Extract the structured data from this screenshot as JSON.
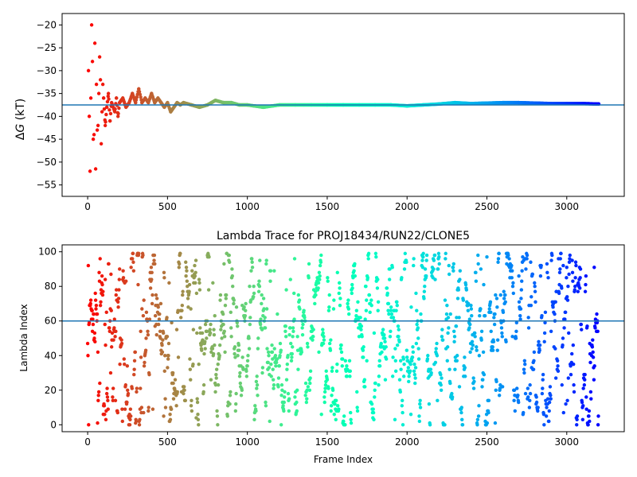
{
  "chart_data": [
    {
      "type": "scatter",
      "title": "",
      "xlabel": "",
      "ylabel": "ΔG (kT)",
      "ylabel_italic_part": "G",
      "xlim": [
        -160,
        3360
      ],
      "ylim": [
        -57.5,
        -17.5
      ],
      "xticks": [
        0,
        500,
        1000,
        1500,
        2000,
        2500,
        3000
      ],
      "xtick_labels": [
        "0",
        "500",
        "1000",
        "1500",
        "2000",
        "2500",
        "3000"
      ],
      "yticks": [
        -20,
        -25,
        -30,
        -35,
        -40,
        -45,
        -50,
        -55
      ],
      "ytick_labels": [
        "−20",
        "−25",
        "−30",
        "−35",
        "−40",
        "−45",
        "−50",
        "−55"
      ],
      "hline": -37.5,
      "hline_color": "#1f77b4",
      "colormap": "rainbow (red at frame 0 → violet at frame 3200)",
      "grid": false,
      "series": [
        {
          "x": [
            5,
            10,
            15,
            20,
            25,
            30,
            35,
            40,
            45,
            50,
            55,
            60,
            65,
            70,
            75,
            80,
            85,
            90,
            95,
            100,
            110,
            120,
            130,
            140,
            150,
            160,
            170,
            180,
            190,
            200,
            220,
            240,
            260,
            280,
            300,
            320,
            340,
            360,
            380,
            400,
            420,
            440,
            460,
            480,
            500,
            520,
            540,
            560,
            580,
            600,
            650,
            700,
            750,
            800,
            850,
            900,
            950,
            1000,
            1100,
            1200,
            1300,
            1400,
            1500,
            1600,
            1700,
            1800,
            1900,
            2000,
            2100,
            2200,
            2300,
            2400,
            2500,
            2600,
            2700,
            2800,
            2900,
            3000,
            3100,
            3200
          ],
          "y": [
            -30,
            -40,
            -52,
            -36,
            -20,
            -28,
            -45,
            -44,
            -24,
            -51.5,
            -33,
            -43,
            -42,
            -35,
            -27,
            -32,
            -46,
            -39,
            -33,
            -36,
            -42,
            -38,
            -35,
            -41,
            -37,
            -38,
            -39,
            -36,
            -40,
            -37,
            -36,
            -38,
            -37,
            -35,
            -37,
            -34,
            -37,
            -36,
            -37,
            -35,
            -37,
            -36,
            -37,
            -38,
            -37,
            -39,
            -38,
            -37,
            -37.5,
            -37,
            -37.5,
            -38,
            -37.5,
            -36.5,
            -37,
            -37,
            -37.5,
            -37.5,
            -38,
            -37.5,
            -37.5,
            -37.5,
            -37.5,
            -37.5,
            -37.5,
            -37.5,
            -37.5,
            -37.7,
            -37.5,
            -37.3,
            -37,
            -37.2,
            -37.1,
            -37,
            -37,
            -37.1,
            -37.2,
            -37.2,
            -37.2,
            -37.3
          ]
        }
      ]
    },
    {
      "type": "scatter",
      "title": "Lambda Trace for PROJ18434/RUN22/CLONE5",
      "xlabel": "Frame Index",
      "ylabel": "Lambda Index",
      "xlim": [
        -160,
        3360
      ],
      "ylim": [
        -4,
        104
      ],
      "xticks": [
        0,
        500,
        1000,
        1500,
        2000,
        2500,
        3000
      ],
      "xtick_labels": [
        "0",
        "500",
        "1000",
        "1500",
        "2000",
        "2500",
        "3000"
      ],
      "yticks": [
        0,
        20,
        40,
        60,
        80,
        100
      ],
      "ytick_labels": [
        "0",
        "20",
        "40",
        "60",
        "80",
        "100"
      ],
      "hline": 60,
      "hline_color": "#1f77b4",
      "colormap": "rainbow (red at frame 0 → violet at frame 3200)",
      "grid": false,
      "n_frames": 3200,
      "frame_step": 2,
      "lambda_range": [
        0,
        99
      ],
      "seed": 18434
    }
  ]
}
